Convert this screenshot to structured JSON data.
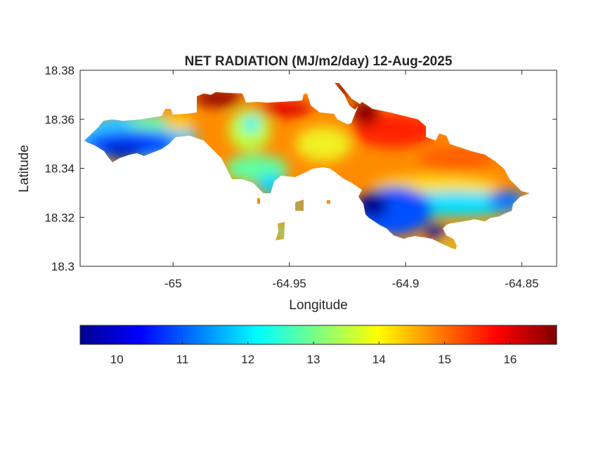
{
  "chart_data": {
    "type": "heatmap",
    "subtype": "filled-contour map",
    "title": "NET RADIATION (MJ/m2/day) 12-Aug-2025",
    "xlabel": "Longitude",
    "ylabel": "Latitude",
    "xlim": [
      -65.04,
      -64.835
    ],
    "ylim": [
      18.3,
      18.38
    ],
    "xticks": [
      -65,
      -64.95,
      -64.9,
      -64.85
    ],
    "xtick_labels": [
      "-65",
      "-64.95",
      "-64.9",
      "-64.85"
    ],
    "yticks": [
      18.3,
      18.32,
      18.34,
      18.36,
      18.38
    ],
    "ytick_labels": [
      "18.3",
      "18.32",
      "18.34",
      "18.36",
      "18.38"
    ],
    "colorbar": {
      "colormap": "jet",
      "placement": "bottom",
      "clim": [
        9.44,
        16.71
      ],
      "ticks": [
        10,
        11,
        12,
        13,
        14,
        15,
        16
      ],
      "tick_labels": [
        "10",
        "11",
        "12",
        "13",
        "14",
        "15",
        "16"
      ]
    },
    "grid": false,
    "value_range_observed": [
      9.5,
      16.7
    ]
  }
}
